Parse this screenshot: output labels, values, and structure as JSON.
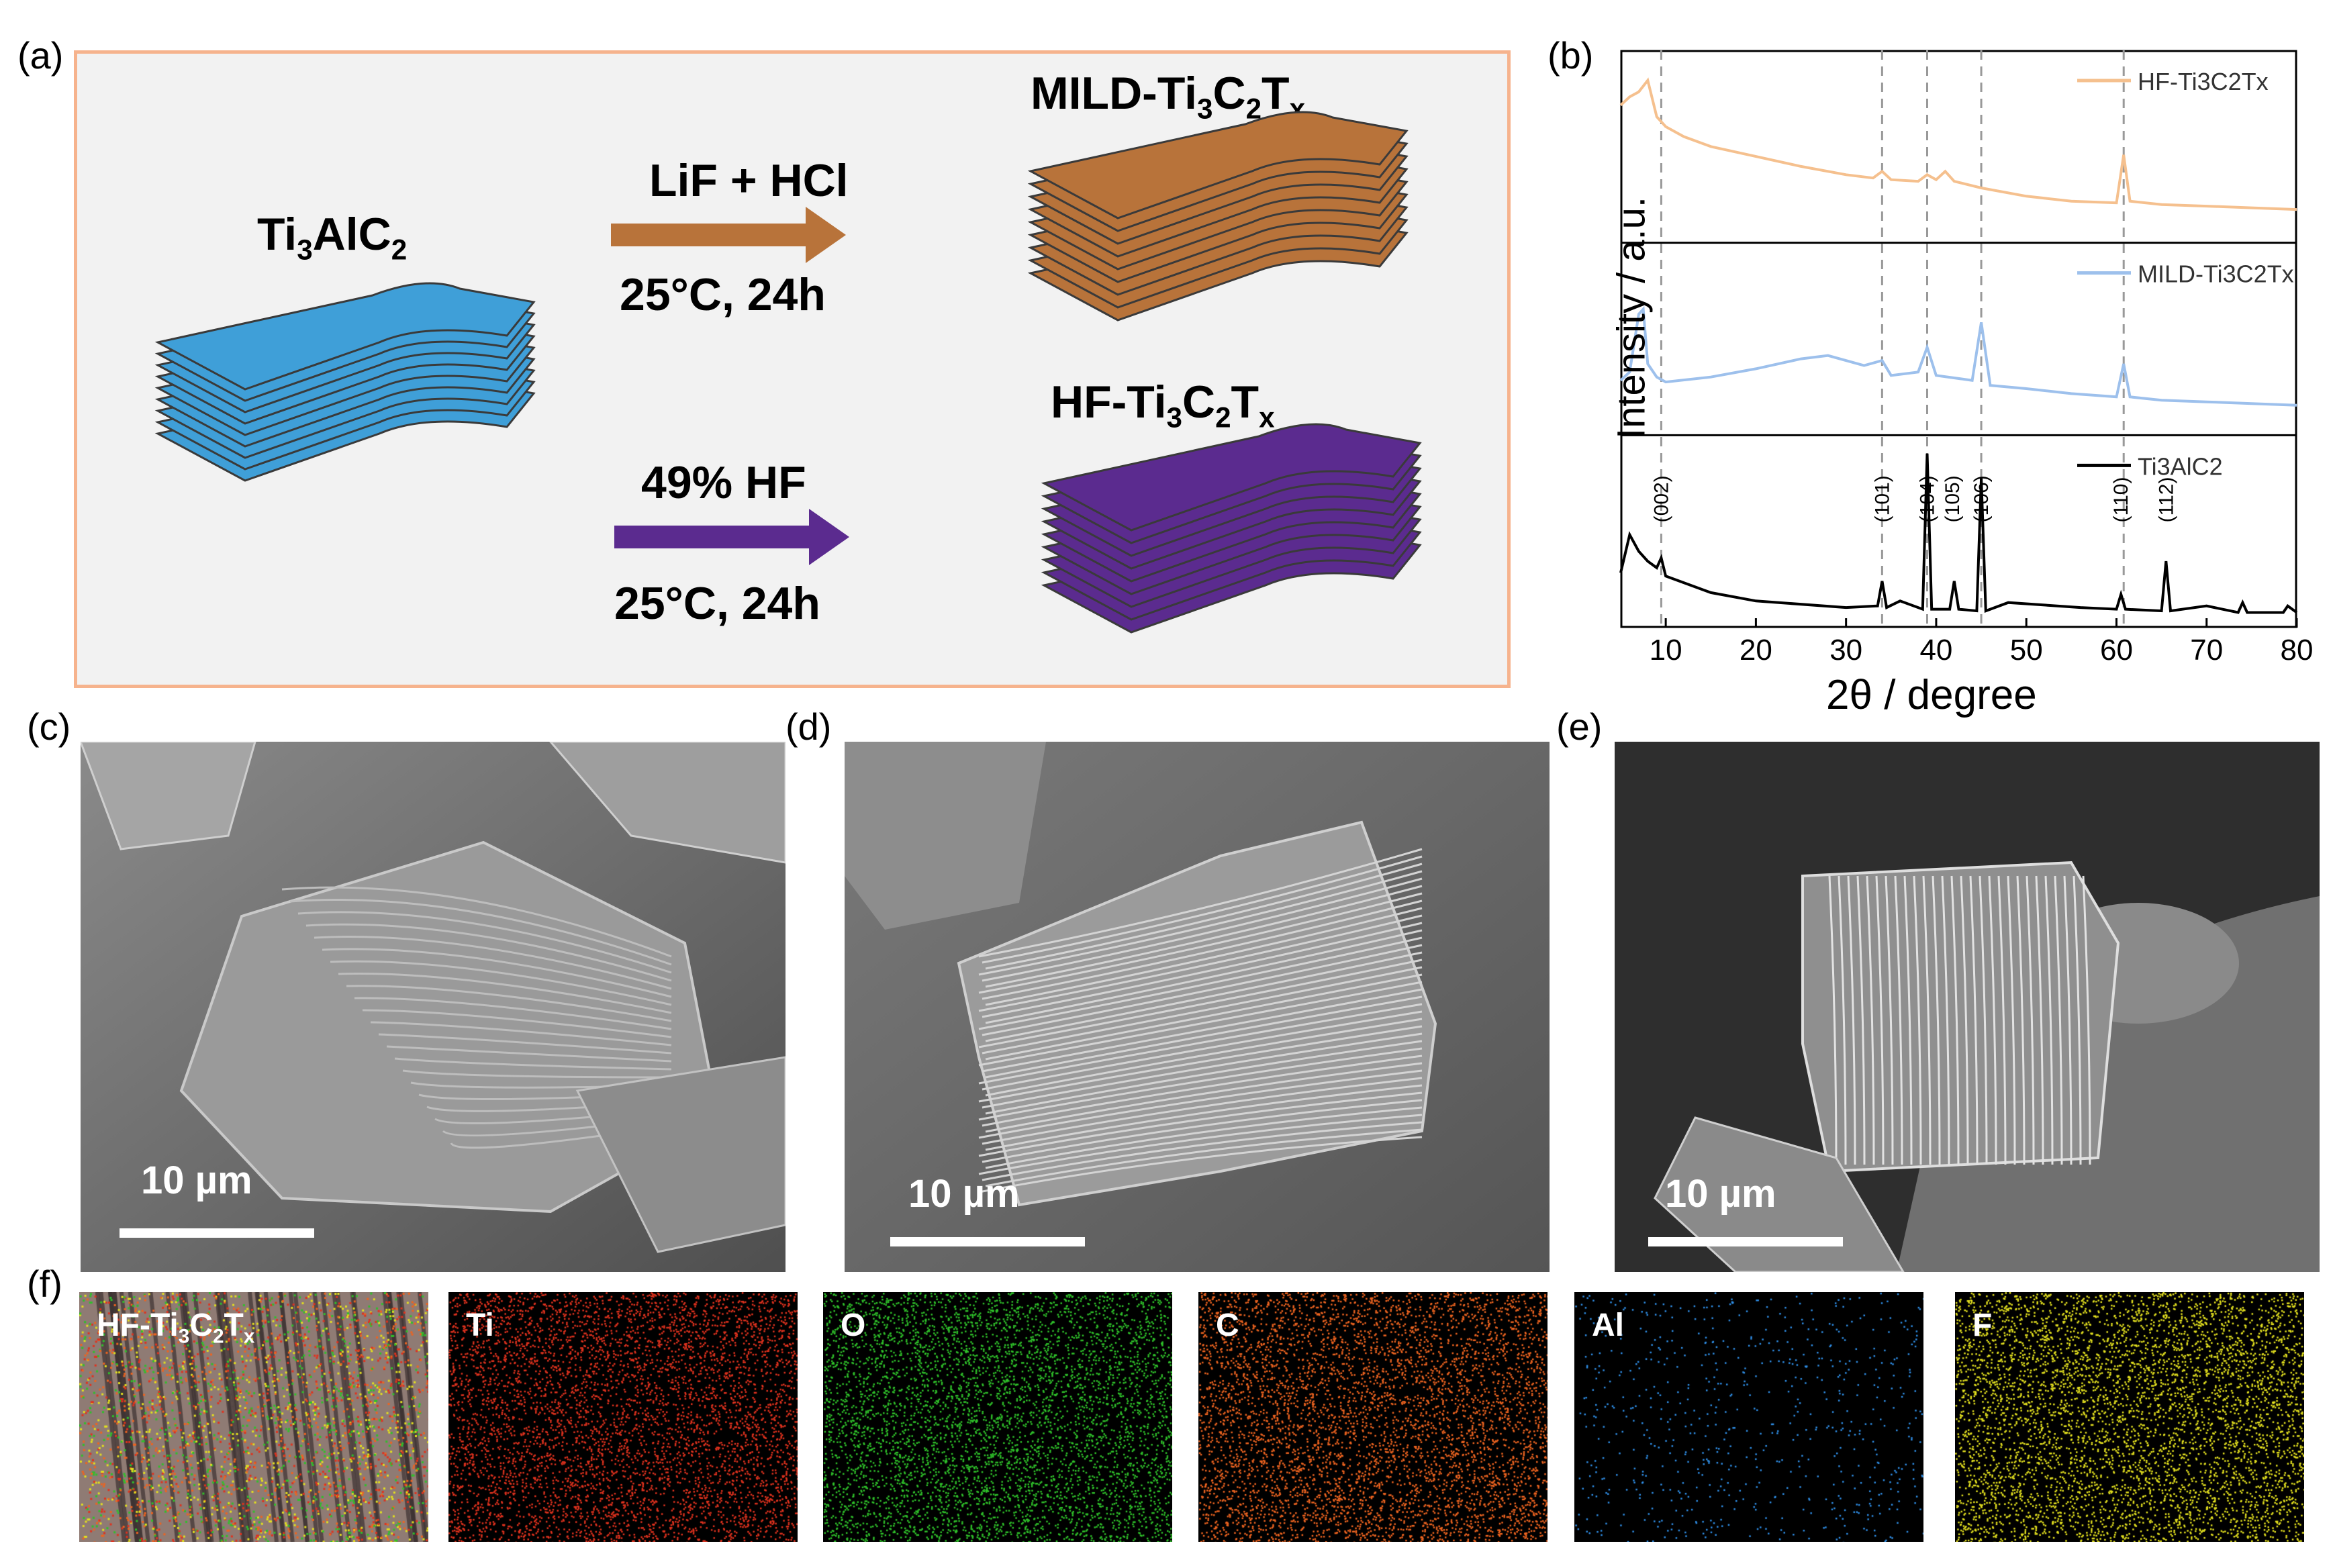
{
  "panels": {
    "a": "(a)",
    "b": "(b)",
    "c": "(c)",
    "d": "(d)",
    "e": "(e)",
    "f": "(f)"
  },
  "schematic": {
    "precursor": "Ti3AlC2",
    "route1": {
      "reagent": "LiF + HCl",
      "condition": "25°C, 24h",
      "product": "MILD-Ti3C2Tx"
    },
    "route2": {
      "reagent": "49% HF",
      "condition": "25°C, 24h",
      "product": "HF-Ti3C2Tx"
    },
    "colors": {
      "precursor": "#3f9fd8",
      "mild": "#b8733a",
      "hf": "#5b2b8f",
      "border": "#f6b38d"
    }
  },
  "chart_data": {
    "type": "line",
    "xlabel": "2θ / degree",
    "ylabel": "Intensity / a.u.",
    "xlim": [
      5,
      80
    ],
    "xticks": [
      10,
      20,
      30,
      40,
      50,
      60,
      70,
      80
    ],
    "reference_lines": [
      9.5,
      34,
      39,
      45,
      60.8
    ],
    "series": [
      {
        "name": "HF-Ti3C2Tx",
        "color": "#f5c08e",
        "x": [
          5,
          6,
          7,
          8,
          9,
          10,
          12,
          15,
          20,
          25,
          30,
          33,
          34,
          35,
          38,
          39,
          40,
          41,
          42,
          45,
          50,
          55,
          60,
          60.8,
          61.5,
          65,
          70,
          75,
          80
        ],
        "y": [
          0.75,
          0.8,
          0.83,
          0.9,
          0.68,
          0.62,
          0.56,
          0.5,
          0.44,
          0.38,
          0.33,
          0.31,
          0.35,
          0.3,
          0.29,
          0.33,
          0.3,
          0.35,
          0.29,
          0.25,
          0.2,
          0.17,
          0.16,
          0.45,
          0.17,
          0.15,
          0.14,
          0.13,
          0.12
        ]
      },
      {
        "name": "MILD-Ti3C2Tx",
        "color": "#9dc0ec",
        "x": [
          5,
          6,
          7,
          7.5,
          8,
          9,
          10,
          15,
          20,
          25,
          28,
          32,
          34,
          35,
          38,
          39,
          40,
          44,
          45,
          46,
          50,
          55,
          60,
          60.8,
          61.5,
          65,
          70,
          75,
          80
        ],
        "y": [
          0.25,
          0.3,
          0.65,
          0.68,
          0.35,
          0.27,
          0.24,
          0.27,
          0.32,
          0.38,
          0.4,
          0.34,
          0.37,
          0.28,
          0.3,
          0.45,
          0.28,
          0.25,
          0.6,
          0.22,
          0.2,
          0.17,
          0.15,
          0.35,
          0.15,
          0.13,
          0.12,
          0.11,
          0.1
        ]
      },
      {
        "name": "Ti3AlC2",
        "color": "#000000",
        "x": [
          5,
          6,
          7,
          8,
          9,
          9.5,
          10,
          15,
          20,
          30,
          33.5,
          34,
          34.5,
          36,
          38.5,
          39,
          39.5,
          41.5,
          42,
          42.5,
          44.5,
          45,
          45.5,
          48,
          56,
          60,
          60.5,
          61,
          65,
          65.5,
          66,
          70,
          73.5,
          74,
          74.5,
          78.5,
          79,
          80
        ],
        "y": [
          0.25,
          0.48,
          0.38,
          0.32,
          0.28,
          0.34,
          0.23,
          0.13,
          0.08,
          0.04,
          0.05,
          0.2,
          0.04,
          0.08,
          0.03,
          0.97,
          0.03,
          0.03,
          0.2,
          0.03,
          0.02,
          0.82,
          0.02,
          0.07,
          0.04,
          0.03,
          0.12,
          0.03,
          0.02,
          0.32,
          0.02,
          0.05,
          0.01,
          0.07,
          0.01,
          0.01,
          0.05,
          0.01
        ]
      }
    ],
    "peak_labels": [
      {
        "label": "(002)",
        "x": 9.5
      },
      {
        "label": "(101)",
        "x": 34
      },
      {
        "label": "(104)",
        "x": 39
      },
      {
        "label": "(105)",
        "x": 41.8
      },
      {
        "label": "(106)",
        "x": 45
      },
      {
        "label": "(110)",
        "x": 60.5
      },
      {
        "label": "(112)",
        "x": 65.5
      }
    ]
  },
  "sem": {
    "c": {
      "scale": "10 µm"
    },
    "d": {
      "scale": "10 µm"
    },
    "e": {
      "scale": "10 µm"
    }
  },
  "eds_maps": [
    {
      "label": "HF-Ti3C2Tx",
      "color": "#b08a7a"
    },
    {
      "label": "Ti",
      "color": "#e0321e"
    },
    {
      "label": "O",
      "color": "#2fc12a"
    },
    {
      "label": "C",
      "color": "#ee6420"
    },
    {
      "label": "Al",
      "color": "#2f8ee6"
    },
    {
      "label": "F",
      "color": "#e3e01f"
    }
  ]
}
